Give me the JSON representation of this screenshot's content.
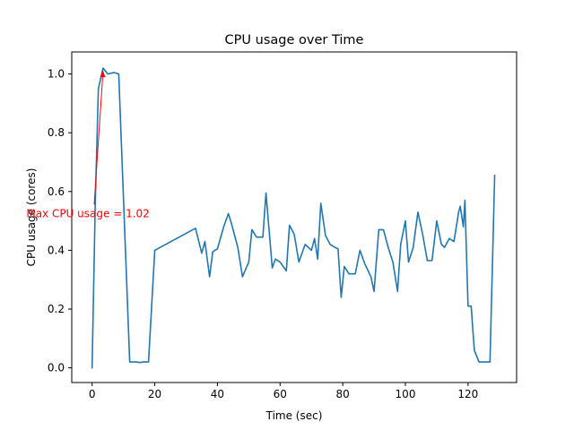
{
  "chart_data": {
    "type": "line",
    "title": "CPU usage over Time",
    "xlabel": "Time (sec)",
    "ylabel": "CPU usage (cores)",
    "xlim": [
      -6.5,
      135.5
    ],
    "ylim": [
      -0.05,
      1.075
    ],
    "xticks": [
      0,
      20,
      40,
      60,
      80,
      100,
      120
    ],
    "xtick_labels": [
      "0",
      "20",
      "40",
      "60",
      "80",
      "100",
      "120"
    ],
    "yticks": [
      0.0,
      0.2,
      0.4,
      0.6,
      0.8,
      1.0
    ],
    "ytick_labels": [
      "0.0",
      "0.2",
      "0.4",
      "0.6",
      "0.8",
      "1.0"
    ],
    "grid": false,
    "series": [
      {
        "color": "#1f77b4",
        "x": [
          0,
          1,
          2,
          3.5,
          5,
          7,
          8.5,
          12,
          14,
          15.5,
          16,
          18,
          20,
          33,
          35,
          36,
          37.5,
          38.5,
          40,
          42,
          43.5,
          44.5,
          46.5,
          48,
          50,
          51,
          52.5,
          54.5,
          55.5,
          57.5,
          58.5,
          60,
          62,
          63,
          64.5,
          66,
          68,
          70,
          71,
          72,
          73,
          74.5,
          76,
          77.5,
          78.5,
          79.5,
          80.5,
          82,
          84,
          85.5,
          87,
          89,
          90,
          91.5,
          93,
          94.5,
          96,
          97.5,
          98.5,
          100,
          101,
          102.5,
          104,
          105.5,
          107,
          108.5,
          110,
          111.5,
          112.5,
          114,
          115.5,
          117,
          117.5,
          118.5,
          119,
          120,
          121,
          122,
          123.5,
          125,
          125.5,
          127,
          128.5
        ],
        "y": [
          0.0,
          0.56,
          0.95,
          1.02,
          1.0,
          1.005,
          1.0,
          0.02,
          0.02,
          0.018,
          0.02,
          0.02,
          0.4,
          0.475,
          0.39,
          0.43,
          0.31,
          0.395,
          0.405,
          0.48,
          0.525,
          0.49,
          0.41,
          0.31,
          0.36,
          0.47,
          0.445,
          0.445,
          0.595,
          0.34,
          0.37,
          0.36,
          0.33,
          0.485,
          0.455,
          0.36,
          0.42,
          0.4,
          0.44,
          0.37,
          0.56,
          0.45,
          0.42,
          0.41,
          0.405,
          0.24,
          0.345,
          0.32,
          0.32,
          0.4,
          0.355,
          0.31,
          0.26,
          0.47,
          0.47,
          0.41,
          0.36,
          0.26,
          0.42,
          0.5,
          0.36,
          0.41,
          0.53,
          0.455,
          0.365,
          0.365,
          0.5,
          0.42,
          0.41,
          0.44,
          0.43,
          0.53,
          0.55,
          0.48,
          0.57,
          0.21,
          0.21,
          0.06,
          0.02,
          0.02,
          0.02,
          0.02,
          0.655
        ]
      }
    ],
    "annotations": [
      {
        "text": "Max CPU usage = 1.02",
        "x": -21,
        "y": 0.525,
        "target_x": 3.5,
        "target_y": 1.02,
        "color": "#ff0000"
      }
    ]
  }
}
